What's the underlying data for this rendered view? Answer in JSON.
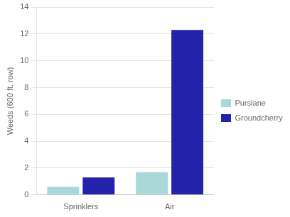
{
  "chart_data": {
    "type": "bar",
    "categories": [
      "Sprinklers",
      "Air"
    ],
    "series": [
      {
        "name": "Purslane",
        "color": "#aad8d8",
        "values": [
          0.6,
          1.7
        ]
      },
      {
        "name": "Groundcherry",
        "color": "#2222aa",
        "values": [
          1.3,
          12.3
        ]
      }
    ],
    "ylabel": "Weeds (600 ft. row)",
    "ylim": [
      0,
      14
    ],
    "yticks": [
      0,
      2,
      4,
      6,
      8,
      10,
      12,
      14
    ],
    "grid": true,
    "legend": "right"
  }
}
